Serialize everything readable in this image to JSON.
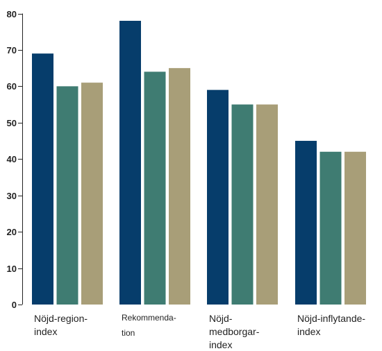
{
  "chart_data": {
    "type": "bar",
    "categories": [
      {
        "label": "Nöjd-region-index",
        "lines": [
          "Nöjd-region-",
          "index"
        ],
        "small": false
      },
      {
        "label": "Rekommendation",
        "lines": [
          "Rekommenda-",
          "tion"
        ],
        "small": true
      },
      {
        "label": "Nöjd-medborgar-index",
        "lines": [
          "Nöjd-",
          "medborgar-",
          "index"
        ],
        "small": false
      },
      {
        "label": "Nöjd-inflytande-index",
        "lines": [
          "Nöjd-inflytande-",
          "index"
        ],
        "small": false
      }
    ],
    "series": [
      {
        "color": "#063d6b",
        "values": [
          69,
          78,
          59,
          45
        ]
      },
      {
        "color": "#3f7c72",
        "values": [
          60,
          64,
          55,
          42
        ]
      },
      {
        "color": "#a89e78",
        "values": [
          61,
          65,
          55,
          42
        ]
      }
    ],
    "yticks": [
      "0",
      "10",
      "20",
      "30",
      "40",
      "50",
      "60",
      "70",
      "80"
    ],
    "ylim": [
      0,
      80
    ],
    "grid": false,
    "legend": "none"
  }
}
